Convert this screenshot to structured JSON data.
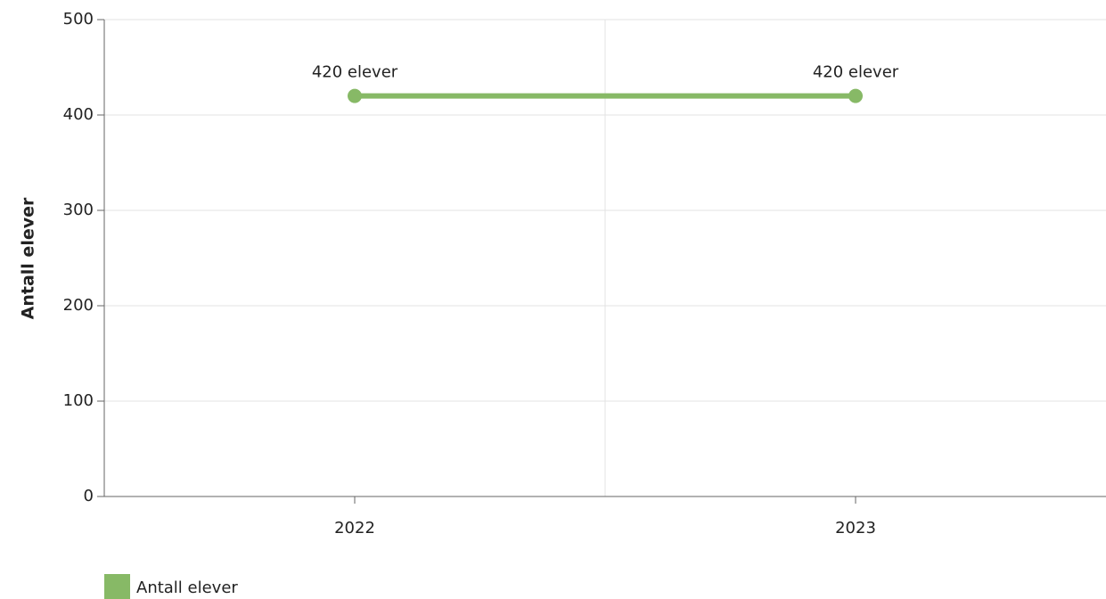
{
  "chart_data": {
    "type": "line",
    "ylabel": "Antall elever",
    "categories": [
      "2022",
      "2023"
    ],
    "series": [
      {
        "name": "Antall elever",
        "color": "#87b966",
        "values": [
          420,
          420
        ],
        "value_labels": [
          "420 elever",
          "420 elever"
        ]
      }
    ],
    "ylim": [
      0,
      500
    ],
    "yticks": [
      0,
      100,
      200,
      300,
      400,
      500
    ],
    "grid": true,
    "legend": "bottom-left"
  }
}
